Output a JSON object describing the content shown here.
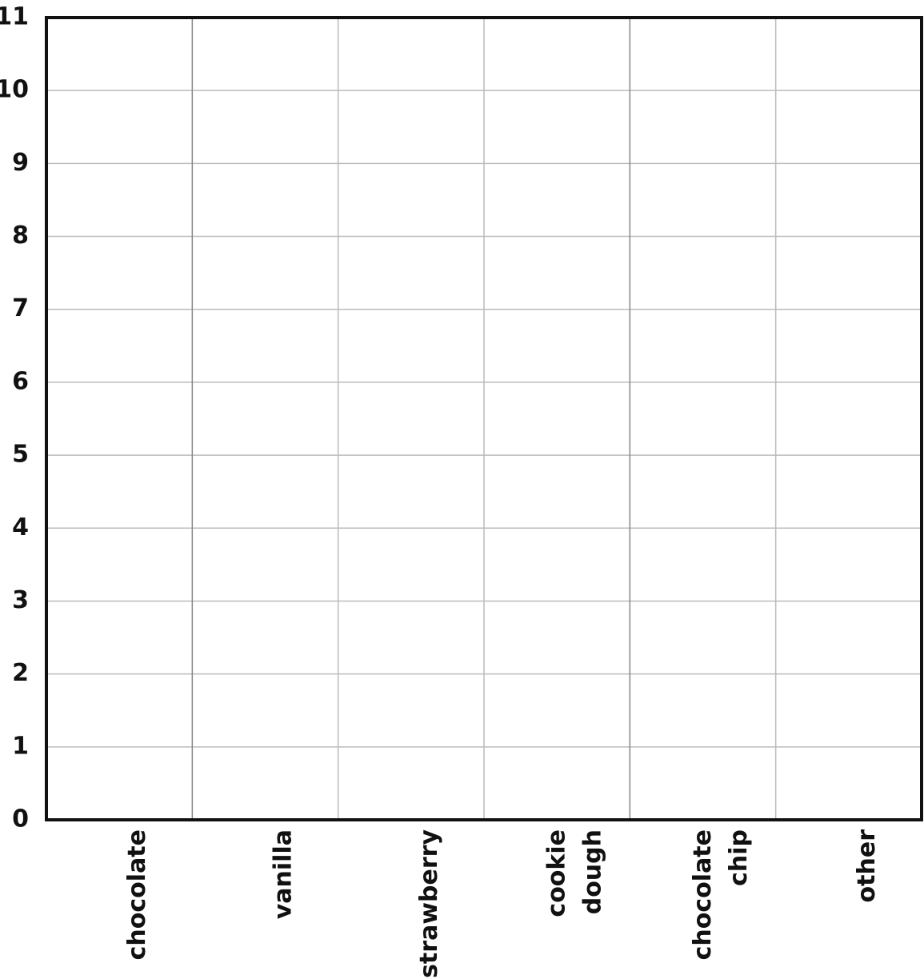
{
  "chart_data": {
    "type": "bar",
    "categories": [
      "chocolate",
      "vanilla",
      "strawberry",
      "cookie dough",
      "chocolate chip",
      "other"
    ],
    "ylim": [
      0,
      11
    ],
    "yticks": [
      0,
      1,
      2,
      3,
      4,
      5,
      6,
      7,
      8,
      9,
      10,
      11
    ],
    "grid": true
  }
}
